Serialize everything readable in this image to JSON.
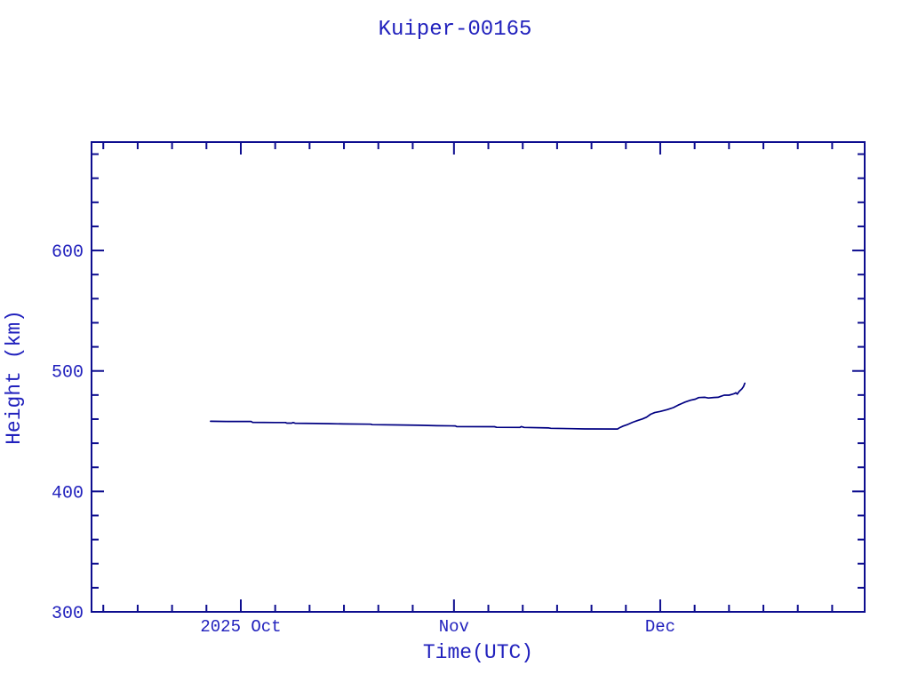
{
  "window": {
    "background": "#ffffff"
  },
  "colors": {
    "text": "#2121bd",
    "axis": "#0d0d8f",
    "plot_line": "#000082",
    "background": "#ffffff"
  },
  "chart_data": {
    "type": "line",
    "title": "Kuiper-00165",
    "xlabel": "Time(UTC)",
    "ylabel": "Height (km)",
    "x_unit": "days relative to 2025 Oct 1",
    "xlim": [
      -21.71,
      90.73
    ],
    "ylim": [
      300,
      690
    ],
    "grid": "off",
    "legend": "none",
    "x_major_ticks": [
      {
        "day": 0,
        "label": "2025 Oct"
      },
      {
        "day": 31,
        "label": "Nov"
      },
      {
        "day": 61,
        "label": "Dec"
      }
    ],
    "x_minor_days": [
      -20,
      -15,
      -10,
      -5,
      5,
      10,
      15,
      20,
      25,
      36,
      41,
      46,
      51,
      56,
      66,
      71,
      76,
      81,
      86
    ],
    "y_major_ticks": [
      300,
      400,
      500,
      600
    ],
    "y_minor_step": 20,
    "series": [
      {
        "name": "orbital-height",
        "color": "#000082",
        "points": [
          [
            -4.4,
            458.2
          ],
          [
            -2.0,
            458.1
          ],
          [
            1.5,
            458.1
          ],
          [
            1.7,
            457.3
          ],
          [
            5.0,
            457.2
          ],
          [
            6.5,
            457.2
          ],
          [
            6.7,
            456.7
          ],
          [
            7.4,
            456.7
          ],
          [
            7.6,
            457.2
          ],
          [
            7.9,
            456.6
          ],
          [
            11.0,
            456.4
          ],
          [
            13.0,
            456.2
          ],
          [
            15.0,
            456.0
          ],
          [
            18.9,
            455.8
          ],
          [
            19.1,
            455.4
          ],
          [
            22.5,
            455.2
          ],
          [
            25.9,
            454.9
          ],
          [
            28.5,
            454.5
          ],
          [
            31.2,
            454.4
          ],
          [
            31.4,
            453.8
          ],
          [
            36.9,
            453.7
          ],
          [
            37.2,
            453.2
          ],
          [
            40.6,
            453.1
          ],
          [
            40.8,
            453.8
          ],
          [
            41.2,
            453.1
          ],
          [
            44.8,
            452.7
          ],
          [
            45.1,
            452.4
          ],
          [
            48.0,
            452.1
          ],
          [
            50.0,
            451.9
          ],
          [
            54.8,
            451.8
          ],
          [
            55.1,
            452.9
          ],
          [
            55.6,
            454.2
          ],
          [
            56.3,
            455.6
          ],
          [
            57.0,
            457.4
          ],
          [
            57.7,
            458.8
          ],
          [
            58.4,
            460.1
          ],
          [
            59.0,
            461.6
          ],
          [
            59.6,
            464.0
          ],
          [
            60.2,
            465.4
          ],
          [
            61.0,
            466.4
          ],
          [
            62.0,
            467.9
          ],
          [
            62.9,
            469.6
          ],
          [
            63.6,
            471.6
          ],
          [
            64.1,
            472.9
          ],
          [
            64.6,
            474.1
          ],
          [
            65.4,
            475.7
          ],
          [
            66.1,
            476.6
          ],
          [
            66.6,
            477.9
          ],
          [
            67.5,
            478.1
          ],
          [
            68.0,
            477.5
          ],
          [
            68.8,
            478.0
          ],
          [
            69.4,
            478.1
          ],
          [
            69.8,
            478.9
          ],
          [
            70.3,
            479.9
          ],
          [
            71.0,
            479.9
          ],
          [
            71.5,
            480.7
          ],
          [
            71.8,
            481.2
          ],
          [
            72.0,
            481.9
          ],
          [
            72.2,
            480.8
          ],
          [
            72.5,
            483.1
          ],
          [
            72.9,
            485.3
          ],
          [
            73.1,
            487.0
          ],
          [
            73.3,
            489.8
          ]
        ]
      }
    ]
  }
}
